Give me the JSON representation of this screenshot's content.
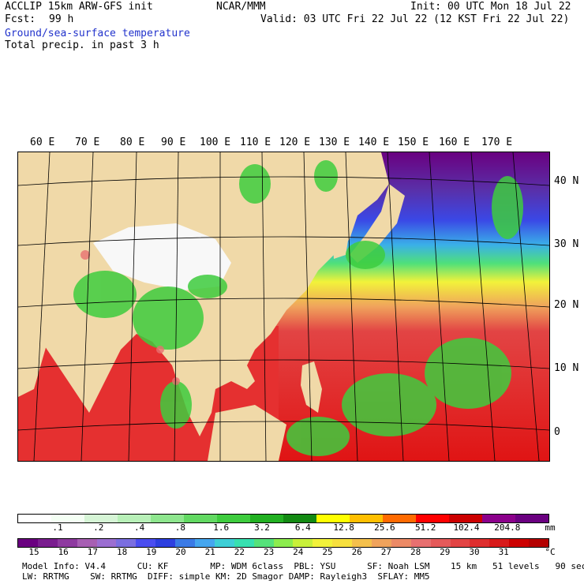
{
  "header": {
    "model": "ACCLIP 15km ARW-GFS init",
    "fcst_label": "Fcst:",
    "fcst_value": "99 h",
    "org": "NCAR/MMM",
    "init": "Init: 00 UTC Mon 18 Jul 22",
    "valid": "Valid: 03 UTC Fri 22 Jul 22 (12 KST Fri 22 Jul 22)",
    "field1": "Ground/sea-surface temperature",
    "field2": "Total precip. in past 3 h"
  },
  "axes": {
    "lon_labels": [
      "60 E",
      "70 E",
      "80 E",
      "90 E",
      "100 E",
      "110 E",
      "120 E",
      "130 E",
      "140 E",
      "150 E",
      "160 E",
      "170 E"
    ],
    "lat_labels": [
      "40 N",
      "30 N",
      "20 N",
      "10 N",
      "0"
    ]
  },
  "precip_scale": {
    "labels": [
      ".1",
      ".2",
      ".4",
      ".8",
      "1.6",
      "3.2",
      "6.4",
      "12.8",
      "25.6",
      "51.2",
      "102.4",
      "204.8"
    ],
    "unit": "mm",
    "colors": [
      "#ffffff",
      "#f4fff4",
      "#d6f5d6",
      "#b8f0b8",
      "#8ee68e",
      "#62d962",
      "#3ecc3e",
      "#22b022",
      "#138a13",
      "#ffff00",
      "#ffbf00",
      "#ff6a00",
      "#ff0000",
      "#cc0000",
      "#8b008b",
      "#6a0080"
    ]
  },
  "temp_scale": {
    "labels": [
      "15",
      "16",
      "17",
      "18",
      "19",
      "20",
      "21",
      "22",
      "23",
      "24",
      "25",
      "26",
      "27",
      "28",
      "29",
      "30",
      "31"
    ],
    "unit": "°C",
    "colors": [
      "#6a0080",
      "#7a1d8f",
      "#8e3aa0",
      "#a75fb3",
      "#9b6ed1",
      "#7a6ee0",
      "#4a4df0",
      "#2d3fe0",
      "#3a7ae6",
      "#45a6ef",
      "#3ecfd6",
      "#37e0b0",
      "#55e27a",
      "#8cec4e",
      "#c8f03a",
      "#f2f23a",
      "#f7e03e",
      "#f4c04c",
      "#f0a35c",
      "#ec8a66",
      "#e87070",
      "#e55a5a",
      "#e24444",
      "#de2e2e",
      "#d81a1a",
      "#cc0000",
      "#b40000"
    ]
  },
  "footer": {
    "line1": "Model Info: V4.4      CU: KF        MP: WDM 6class  PBL: YSU      SF: Noah LSM    15 km   51 levels   90 sec",
    "line2": "LW: RRTMG    SW: RRTMG  DIFF: simple KM: 2D Smagor DAMP: Rayleigh3  SFLAY: MM5"
  }
}
